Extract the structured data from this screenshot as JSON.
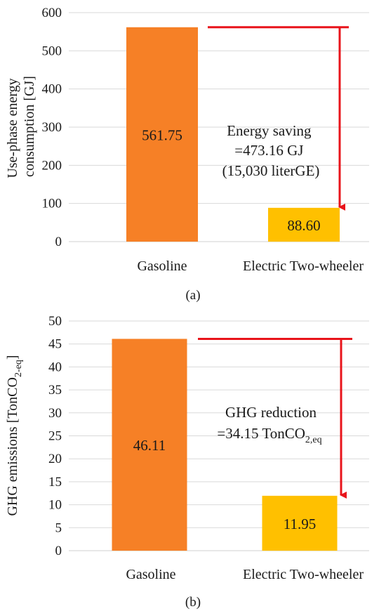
{
  "chart_data": [
    {
      "type": "bar",
      "panel_label": "(a)",
      "categories": [
        "Gasoline",
        "Electric Two-wheeler"
      ],
      "values": [
        561.75,
        88.6
      ],
      "data_labels": [
        "561.75",
        "88.60"
      ],
      "ylabel_lines": [
        "Use-phase energy",
        "consumption [GJ]"
      ],
      "ylim": [
        0,
        600
      ],
      "yticks": [
        0,
        100,
        200,
        300,
        400,
        500,
        600
      ],
      "grid": true,
      "annotation_lines": [
        "Energy saving",
        "=473.16 GJ",
        "(15,030 literGE)"
      ],
      "colors": [
        "#F68026",
        "#FFC000"
      ],
      "arrow_color": "#E8141B"
    },
    {
      "type": "bar",
      "panel_label": "(b)",
      "categories": [
        "Gasoline",
        "Electric Two-wheeler"
      ],
      "values": [
        46.11,
        11.95
      ],
      "data_labels": [
        "46.11",
        "11.95"
      ],
      "ylabel_main": "GHG emissions [TonCO",
      "ylabel_sub": "2-eq",
      "ylabel_end": "]",
      "ylim": [
        0,
        50
      ],
      "yticks": [
        0,
        5,
        10,
        15,
        20,
        25,
        30,
        35,
        40,
        45,
        50
      ],
      "grid": true,
      "annotation_line1": "GHG reduction",
      "annotation_line2_main": "=34.15 TonCO",
      "annotation_line2_sub": "2,eq",
      "colors": [
        "#F68026",
        "#FFC000"
      ],
      "arrow_color": "#E8141B"
    }
  ]
}
